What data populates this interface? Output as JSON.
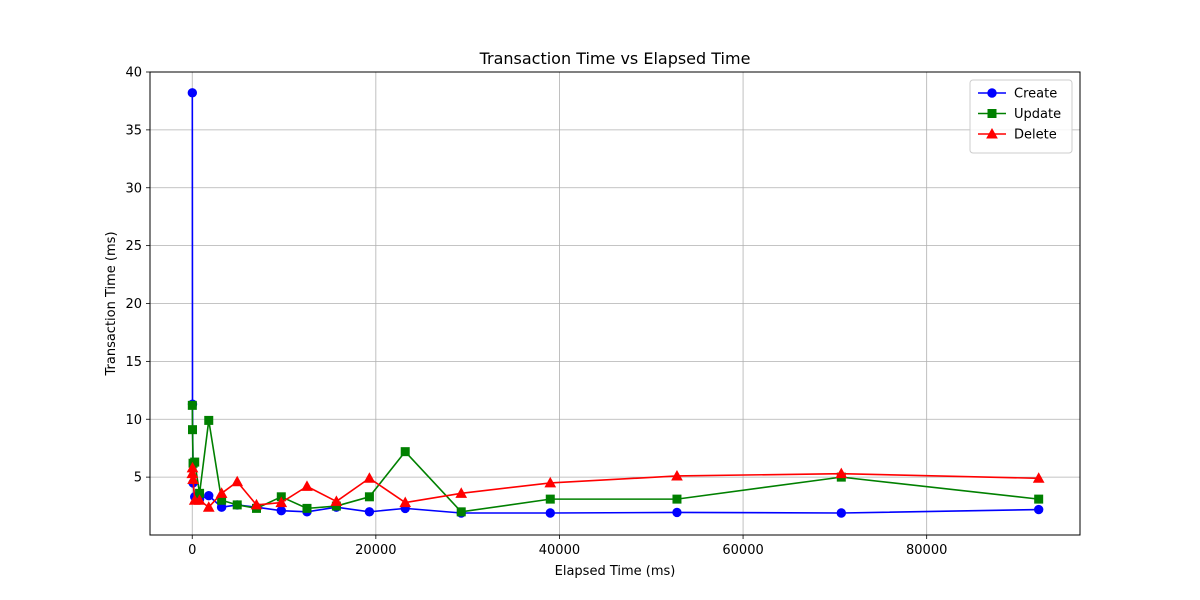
{
  "chart_data": {
    "type": "line",
    "title": "Transaction Time vs Elapsed Time",
    "xlabel": "Elapsed Time (ms)",
    "ylabel": "Transaction Time (ms)",
    "xlim": [
      -4600,
      96700
    ],
    "ylim": [
      0,
      40
    ],
    "xticks": [
      0,
      20000,
      40000,
      60000,
      80000
    ],
    "xtick_labels": [
      "0",
      "20000",
      "40000",
      "60000",
      "80000"
    ],
    "yticks": [
      5,
      10,
      15,
      20,
      25,
      30,
      35,
      40
    ],
    "ytick_labels": [
      "5",
      "10",
      "15",
      "20",
      "25",
      "30",
      "35",
      "40"
    ],
    "grid": true,
    "legend_position": "top-right",
    "series": [
      {
        "name": "Create",
        "color": "#0000ff",
        "marker": "circle",
        "x": [
          10,
          30,
          90,
          270,
          800,
          1800,
          3200,
          4900,
          7000,
          9700,
          12500,
          15700,
          19300,
          23200,
          29300,
          39000,
          52800,
          70700,
          92200
        ],
        "y": [
          38.2,
          11.3,
          4.5,
          3.3,
          3.1,
          3.4,
          2.4,
          2.6,
          2.4,
          2.1,
          2.0,
          2.4,
          2.0,
          2.3,
          1.9,
          1.9,
          1.95,
          1.9,
          2.2
        ]
      },
      {
        "name": "Update",
        "color": "#008000",
        "marker": "square",
        "x": [
          10,
          30,
          90,
          270,
          800,
          1800,
          3200,
          4900,
          7000,
          9700,
          12500,
          15700,
          19300,
          23200,
          29300,
          39000,
          52800,
          70700,
          92200
        ],
        "y": [
          11.2,
          9.1,
          6.2,
          6.3,
          3.6,
          9.9,
          3.0,
          2.6,
          2.3,
          3.3,
          2.3,
          2.5,
          3.3,
          7.2,
          2.0,
          3.1,
          3.1,
          5.0,
          3.1
        ]
      },
      {
        "name": "Delete",
        "color": "#ff0000",
        "marker": "triangle",
        "x": [
          10,
          30,
          90,
          270,
          800,
          1800,
          3200,
          4900,
          7000,
          9700,
          12500,
          15700,
          19300,
          23200,
          29300,
          39000,
          52800,
          70700,
          92200
        ],
        "y": [
          5.3,
          5.8,
          4.8,
          3.0,
          3.0,
          2.4,
          3.6,
          4.6,
          2.6,
          2.8,
          4.2,
          2.9,
          4.9,
          2.8,
          3.6,
          4.5,
          5.1,
          5.3,
          4.9
        ]
      }
    ]
  }
}
